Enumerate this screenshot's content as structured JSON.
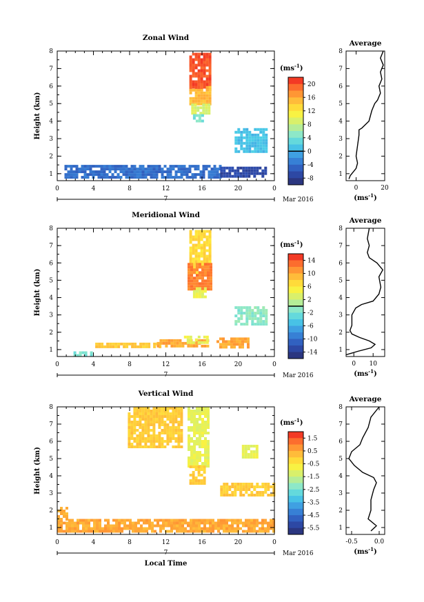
{
  "x_axis": {
    "ticks": [
      "0",
      "4",
      "8",
      "12",
      "16",
      "20",
      "0"
    ],
    "day_label": "7",
    "month_label": "Mar 2016",
    "label": "Local Time"
  },
  "y_axis": {
    "label": "Height (km)",
    "ticks": [
      "1",
      "2",
      "3",
      "4",
      "5",
      "6",
      "7",
      "8"
    ]
  },
  "unit_label": "(ms",
  "unit_superscript": "-1",
  "chart_data": [
    {
      "type": "heatmap",
      "title": "Zonal Wind",
      "xlabel": "",
      "ylabel": "Height (km)",
      "xlim": [
        0,
        24
      ],
      "ylim": [
        0.6,
        8.0
      ],
      "colorbar": {
        "ticks": [
          20,
          16,
          12,
          8,
          4,
          0,
          -4,
          -8
        ],
        "range": [
          -10,
          22
        ],
        "zero_line": 0
      },
      "regions": [
        {
          "x": [
            14.6,
            16.8
          ],
          "y": [
            5.8,
            7.9
          ],
          "value": 20
        },
        {
          "x": [
            14.6,
            17.0
          ],
          "y": [
            5.0,
            6.0
          ],
          "value": 15
        },
        {
          "x": [
            14.8,
            16.8
          ],
          "y": [
            4.4,
            5.0
          ],
          "value": 9
        },
        {
          "x": [
            15.0,
            16.2
          ],
          "y": [
            4.0,
            4.4
          ],
          "value": 4
        },
        {
          "x": [
            19.6,
            23.2
          ],
          "y": [
            2.3,
            3.6
          ],
          "value": 1
        },
        {
          "x": [
            0.8,
            18.0
          ],
          "y": [
            0.8,
            1.5
          ],
          "value": -4
        },
        {
          "x": [
            18.0,
            23.0
          ],
          "y": [
            0.8,
            1.4
          ],
          "value": -7
        }
      ],
      "profile": {
        "title": "Average",
        "xlim": [
          -7,
          20
        ],
        "xticks": [
          "0",
          "20"
        ],
        "xlabel": "(ms",
        "points": [
          [
            -5,
            0.7
          ],
          [
            -4,
            0.9
          ],
          [
            -2,
            1.1
          ],
          [
            0,
            1.3
          ],
          [
            1,
            1.6
          ],
          [
            0,
            2.0
          ],
          [
            1,
            2.6
          ],
          [
            2,
            3.2
          ],
          [
            2,
            3.5
          ],
          [
            4,
            3.6
          ],
          [
            9,
            4.0
          ],
          [
            11,
            4.6
          ],
          [
            13,
            5.0
          ],
          [
            15,
            5.2
          ],
          [
            17,
            5.6
          ],
          [
            16,
            6.0
          ],
          [
            18,
            6.4
          ],
          [
            17,
            6.8
          ],
          [
            19,
            7.2
          ],
          [
            17,
            7.6
          ],
          [
            19,
            8.0
          ]
        ]
      }
    },
    {
      "type": "heatmap",
      "title": "Meridional Wind",
      "xlabel": "",
      "ylabel": "Height (km)",
      "xlim": [
        0,
        24
      ],
      "ylim": [
        0.6,
        8.0
      ],
      "colorbar": {
        "ticks": [
          14,
          10,
          6,
          2,
          -2,
          -6,
          -10,
          -14
        ],
        "range": [
          -16,
          16
        ],
        "zero_line": 0
      },
      "regions": [
        {
          "x": [
            14.6,
            16.8
          ],
          "y": [
            5.5,
            7.9
          ],
          "value": 7
        },
        {
          "x": [
            14.4,
            17.0
          ],
          "y": [
            4.5,
            6.0
          ],
          "value": 12
        },
        {
          "x": [
            15.0,
            16.4
          ],
          "y": [
            4.0,
            4.6
          ],
          "value": 4
        },
        {
          "x": [
            19.6,
            23.0
          ],
          "y": [
            2.4,
            3.5
          ],
          "value": -1
        },
        {
          "x": [
            4.2,
            11.5
          ],
          "y": [
            1.2,
            1.4
          ],
          "value": 8
        },
        {
          "x": [
            11.0,
            16.6
          ],
          "y": [
            1.2,
            1.6
          ],
          "value": 10
        },
        {
          "x": [
            14.0,
            16.6
          ],
          "y": [
            1.4,
            1.8
          ],
          "value": 4
        },
        {
          "x": [
            17.6,
            21.0
          ],
          "y": [
            1.2,
            1.7
          ],
          "value": 10
        },
        {
          "x": [
            1.8,
            4.0
          ],
          "y": [
            0.7,
            0.9
          ],
          "value": -2
        }
      ],
      "profile": {
        "title": "Average",
        "xlim": [
          -4,
          16
        ],
        "xticks": [
          "0",
          "10"
        ],
        "xlabel": "(ms",
        "points": [
          [
            -4,
            0.7
          ],
          [
            2,
            0.9
          ],
          [
            9,
            1.1
          ],
          [
            11,
            1.3
          ],
          [
            8,
            1.5
          ],
          [
            3,
            1.7
          ],
          [
            -1,
            1.9
          ],
          [
            -2,
            2.1
          ],
          [
            -1,
            2.4
          ],
          [
            -1,
            3.0
          ],
          [
            1,
            3.4
          ],
          [
            4,
            3.6
          ],
          [
            10,
            3.8
          ],
          [
            13,
            4.2
          ],
          [
            14,
            4.6
          ],
          [
            13,
            5.2
          ],
          [
            15,
            5.6
          ],
          [
            12,
            6.0
          ],
          [
            8,
            6.3
          ],
          [
            7,
            6.6
          ],
          [
            8,
            7.0
          ],
          [
            7,
            7.4
          ],
          [
            8,
            8.0
          ]
        ]
      }
    },
    {
      "type": "heatmap",
      "title": "Vertical Wind",
      "xlabel": "Local Time",
      "ylabel": "Height (km)",
      "xlim": [
        0,
        24
      ],
      "ylim": [
        0.6,
        8.0
      ],
      "colorbar": {
        "ticks": [
          1.5,
          0.5,
          -0.5,
          -1.5,
          -2.5,
          -3.5,
          -4.5,
          -5.5
        ],
        "range": [
          -6,
          2
        ]
      },
      "regions": [
        {
          "x": [
            7.8,
            13.8
          ],
          "y": [
            5.6,
            8.0
          ],
          "value": 0.0
        },
        {
          "x": [
            14.4,
            16.8
          ],
          "y": [
            4.6,
            8.0
          ],
          "value": -1.0
        },
        {
          "x": [
            14.6,
            16.2
          ],
          "y": [
            3.6,
            4.6
          ],
          "value": 0.0
        },
        {
          "x": [
            18.0,
            24.0
          ],
          "y": [
            2.8,
            3.6
          ],
          "value": 0.0
        },
        {
          "x": [
            20.4,
            22.2
          ],
          "y": [
            5.0,
            5.8
          ],
          "value": -1.0
        },
        {
          "x": [
            0.0,
            24.0
          ],
          "y": [
            0.7,
            1.5
          ],
          "value": 0.5
        },
        {
          "x": [
            0.0,
            1.2
          ],
          "y": [
            1.5,
            2.2
          ],
          "value": 0.5
        }
      ],
      "profile": {
        "title": "Average",
        "xlim": [
          -0.6,
          0.1
        ],
        "xticks": [
          "-0.5",
          "0.0"
        ],
        "xlabel": "(ms",
        "points": [
          [
            -0.15,
            0.8
          ],
          [
            -0.05,
            1.1
          ],
          [
            -0.2,
            1.5
          ],
          [
            -0.15,
            2.0
          ],
          [
            -0.15,
            2.6
          ],
          [
            -0.1,
            3.2
          ],
          [
            -0.05,
            3.6
          ],
          [
            -0.1,
            3.9
          ],
          [
            -0.3,
            4.2
          ],
          [
            -0.45,
            4.6
          ],
          [
            -0.55,
            5.0
          ],
          [
            -0.5,
            5.4
          ],
          [
            -0.35,
            5.8
          ],
          [
            -0.3,
            6.2
          ],
          [
            -0.2,
            6.8
          ],
          [
            -0.15,
            7.4
          ],
          [
            0.0,
            8.0
          ]
        ]
      }
    }
  ]
}
